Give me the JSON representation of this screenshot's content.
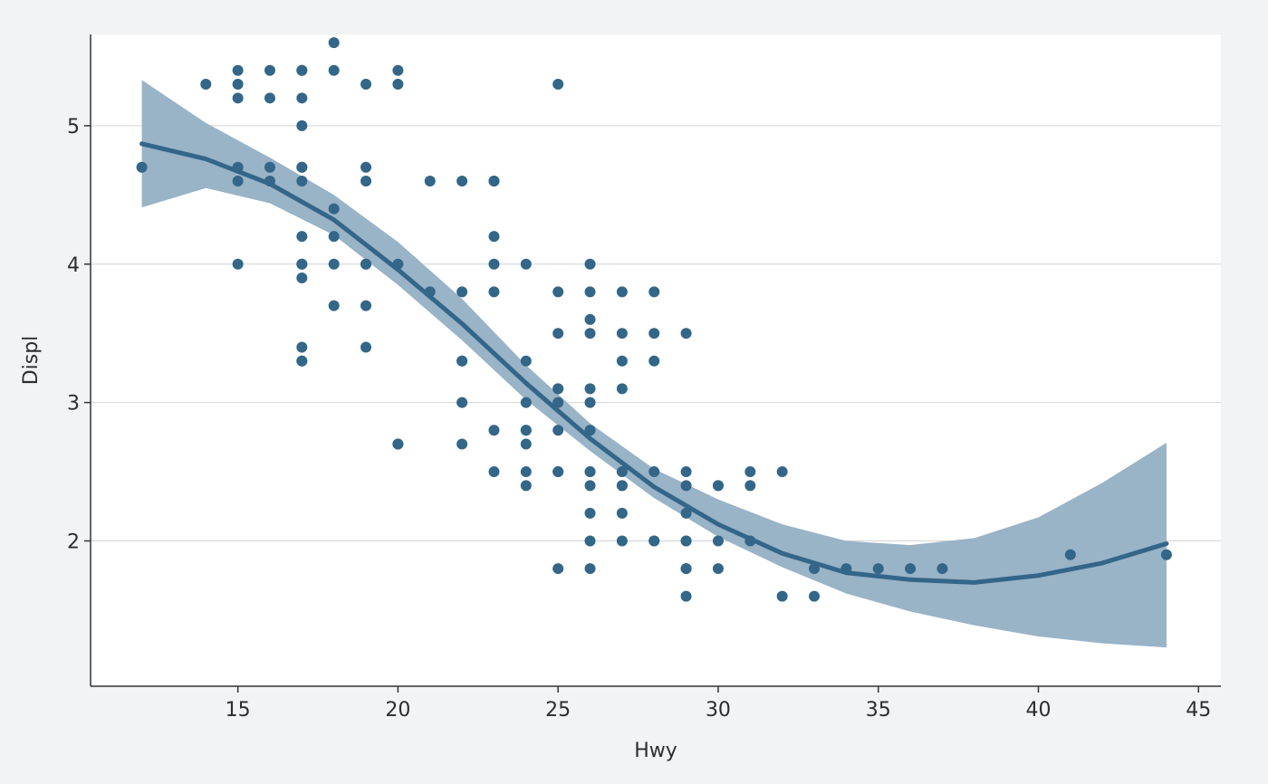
{
  "colors": {
    "background": "#f2f3f5",
    "panel": "#ffffff",
    "point": "#336688",
    "line": "#336688",
    "ribbon": "#99b3c7",
    "grid": "#d3d3d3",
    "axis": "#333333",
    "text": "#2d2d2d"
  },
  "chart_data": {
    "type": "scatter",
    "title": "",
    "xlabel": "Hwy",
    "ylabel": "Displ",
    "xlim": [
      10.4,
      45.7
    ],
    "ylim": [
      0.95,
      5.66
    ],
    "xticks": [
      15,
      20,
      25,
      30,
      35,
      40,
      45
    ],
    "yticks": [
      2,
      3,
      4,
      5
    ],
    "grid": "horizontal major",
    "legend": "none",
    "points": {
      "x": [
        12,
        14,
        15,
        15,
        15,
        15,
        15,
        15,
        16,
        16,
        16,
        16,
        17,
        17,
        17,
        17,
        17,
        17,
        17,
        17,
        17,
        17,
        17,
        17,
        17,
        17,
        18,
        18,
        18,
        18,
        18,
        18,
        19,
        19,
        19,
        19,
        19,
        19,
        19,
        20,
        20,
        20,
        20,
        20,
        21,
        21,
        22,
        22,
        22,
        22,
        22,
        22,
        23,
        23,
        23,
        23,
        23,
        23,
        23,
        24,
        24,
        24,
        24,
        24,
        24,
        24,
        24,
        25,
        25,
        25,
        25,
        25,
        25,
        25,
        25,
        25,
        25,
        26,
        26,
        26,
        26,
        26,
        26,
        26,
        26,
        26,
        26,
        26,
        26,
        26,
        27,
        27,
        27,
        27,
        27,
        27,
        27,
        27,
        27,
        28,
        28,
        28,
        28,
        28,
        28,
        29,
        29,
        29,
        29,
        29,
        29,
        29,
        29,
        29,
        30,
        30,
        30,
        30,
        31,
        31,
        31,
        32,
        32,
        33,
        33,
        34,
        35,
        36,
        37,
        41,
        44
      ],
      "y": [
        4.7,
        5.3,
        5.4,
        5.3,
        5.2,
        4.7,
        4.6,
        4.0,
        5.4,
        5.2,
        4.7,
        4.6,
        5.4,
        5.2,
        5.0,
        4.7,
        4.6,
        4.2,
        4.0,
        3.9,
        3.4,
        3.3,
        4.0,
        4.7,
        5.4,
        3.3,
        5.6,
        5.4,
        4.4,
        4.2,
        4.0,
        3.7,
        5.3,
        4.7,
        4.6,
        4.0,
        3.7,
        3.4,
        4.0,
        5.4,
        5.3,
        4.0,
        2.7,
        2.7,
        4.6,
        3.8,
        4.6,
        3.8,
        3.3,
        3.0,
        2.7,
        3.3,
        4.6,
        4.2,
        4.0,
        3.8,
        2.8,
        2.5,
        4.6,
        4.0,
        3.3,
        3.0,
        2.8,
        2.7,
        2.5,
        2.4,
        2.8,
        5.3,
        3.8,
        3.5,
        3.1,
        3.0,
        2.8,
        2.5,
        1.8,
        2.5,
        3.1,
        4.0,
        3.8,
        3.6,
        3.5,
        3.1,
        3.0,
        2.8,
        2.5,
        2.4,
        2.2,
        2.0,
        1.8,
        2.5,
        3.8,
        3.5,
        3.3,
        3.1,
        2.5,
        2.4,
        2.2,
        2.0,
        2.4,
        3.8,
        3.5,
        3.3,
        2.5,
        2.0,
        2.0,
        3.5,
        2.5,
        2.4,
        2.2,
        2.0,
        1.8,
        1.6,
        2.0,
        1.8,
        2.4,
        2.0,
        1.8,
        2.4,
        2.5,
        2.4,
        2.0,
        2.5,
        1.6,
        1.8,
        1.6,
        1.8,
        1.8,
        1.8,
        1.8,
        1.9,
        1.9
      ]
    },
    "smooth": {
      "x": [
        12,
        14,
        16,
        18,
        20,
        22,
        24,
        26,
        28,
        30,
        32,
        34,
        36,
        38,
        40,
        42,
        44
      ],
      "y": [
        4.87,
        4.76,
        4.58,
        4.32,
        3.96,
        3.57,
        3.14,
        2.74,
        2.39,
        2.12,
        1.91,
        1.77,
        1.72,
        1.7,
        1.75,
        1.84,
        1.98
      ],
      "lower": [
        4.41,
        4.55,
        4.44,
        4.21,
        3.85,
        3.45,
        3.02,
        2.65,
        2.31,
        2.03,
        1.81,
        1.62,
        1.49,
        1.39,
        1.31,
        1.26,
        1.23
      ],
      "upper": [
        5.33,
        5.02,
        4.77,
        4.5,
        4.16,
        3.75,
        3.27,
        2.85,
        2.52,
        2.3,
        2.12,
        2.0,
        1.97,
        2.02,
        2.17,
        2.42,
        2.71
      ]
    }
  }
}
